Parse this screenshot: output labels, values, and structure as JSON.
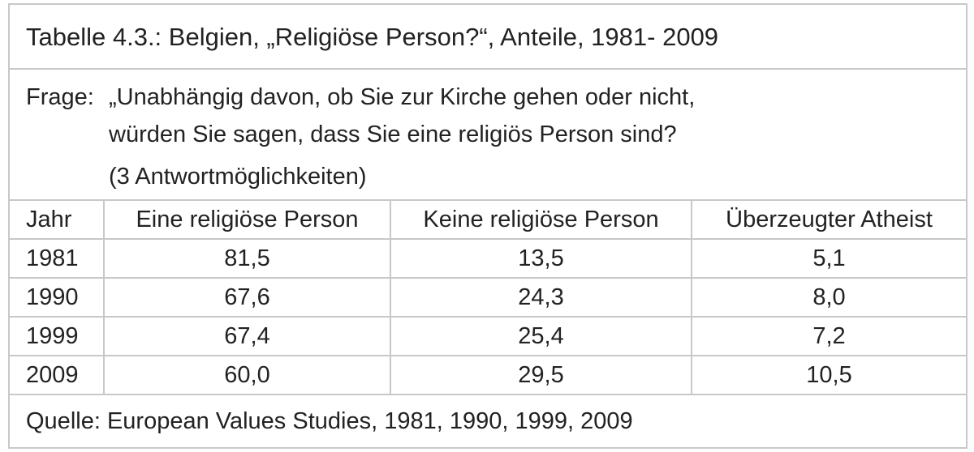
{
  "title": "Tabelle 4.3.: Belgien, „Religiöse Person?“, Anteile, 1981- 2009",
  "question": {
    "label": "Frage:",
    "line1": "„Unabhängig davon, ob Sie zur Kirche gehen oder nicht,",
    "line2": "würden Sie sagen, dass Sie eine religiös Person sind?",
    "line3": "(3 Antwortmöglichkeiten)"
  },
  "columns": [
    "Jahr",
    "Eine religiöse Person",
    "Keine religiöse Person",
    "Überzeugter Atheist"
  ],
  "rows": [
    [
      "1981",
      "81,5",
      "13,5",
      "5,1"
    ],
    [
      "1990",
      "67,6",
      "24,3",
      "8,0"
    ],
    [
      "1999",
      "67,4",
      "25,4",
      "7,2"
    ],
    [
      "2009",
      "60,0",
      "29,5",
      "10,5"
    ]
  ],
  "source": "Quelle: European Values Studies, 1981, 1990, 1999, 2009"
}
